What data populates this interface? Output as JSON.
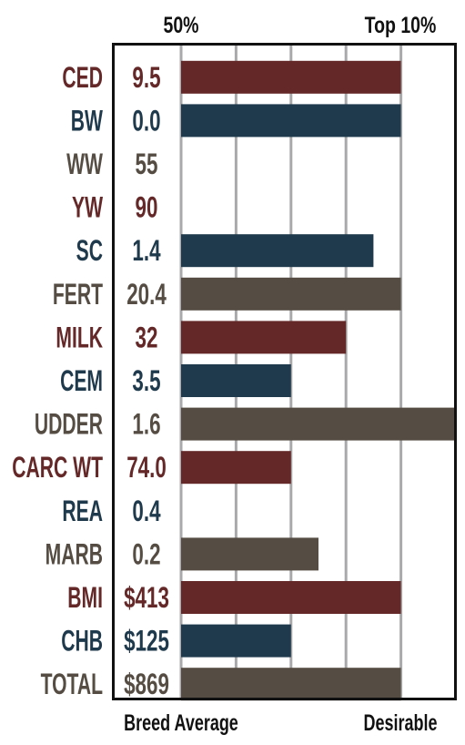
{
  "colors": {
    "red": "#642828",
    "blue": "#1f3a4c",
    "gray": "#554d43",
    "grid": "#a9a9ab",
    "border": "#111111"
  },
  "header": {
    "left_label": "50%",
    "right_label": "Top 10%"
  },
  "footer": {
    "left_label": "Breed Average",
    "right_label": "Desirable"
  },
  "chart_data": {
    "type": "bar",
    "orientation": "horizontal",
    "categories": [
      "CED",
      "BW",
      "WW",
      "YW",
      "SC",
      "FERT",
      "MILK",
      "CEM",
      "UDDER",
      "CARC WT",
      "REA",
      "MARB",
      "BMI",
      "CHB",
      "TOTAL"
    ],
    "value_labels": [
      "9.5",
      "0.0",
      "55",
      "90",
      "1.4",
      "20.4",
      "32",
      "3.5",
      "1.6",
      "74.0",
      "0.4",
      "0.2",
      "$413",
      "$125",
      "$869"
    ],
    "bar_lengths": [
      4,
      4,
      0,
      0,
      3.5,
      4,
      3,
      2,
      5,
      2,
      0,
      2.5,
      4,
      2,
      4
    ],
    "xlim": [
      0,
      5
    ],
    "grid": true,
    "row_colors": [
      "red",
      "blue",
      "gray",
      "red",
      "blue",
      "gray",
      "red",
      "blue",
      "gray",
      "red",
      "blue",
      "gray",
      "red",
      "blue",
      "gray"
    ]
  }
}
